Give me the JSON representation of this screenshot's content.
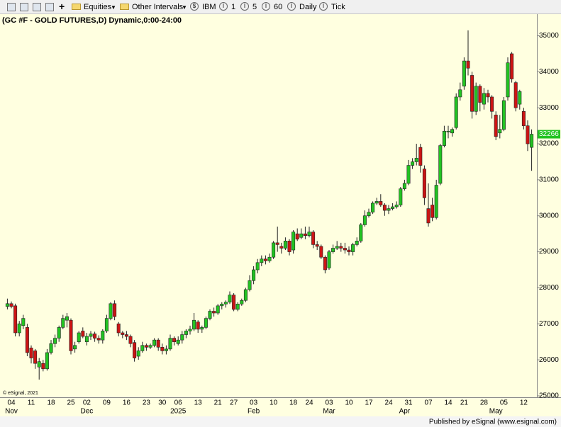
{
  "toolbar": {
    "items": [
      "Equities",
      "Other Intervals",
      "IBM",
      "1",
      "5",
      "60",
      "Daily",
      "Tick"
    ]
  },
  "footer": "Published by eSignal (www.esignal.com)",
  "chart_data": {
    "type": "candlestick",
    "title": "(GC #F - GOLD FUTURES,D) Dynamic,0:00-24:00",
    "copyright": "© eSignal, 2021",
    "categories": [
      null,
      "04",
      null,
      null,
      null,
      null,
      "11",
      null,
      null,
      null,
      null,
      "18",
      null,
      null,
      null,
      null,
      "25",
      null,
      null,
      null,
      "02",
      null,
      null,
      null,
      null,
      "09",
      null,
      null,
      null,
      null,
      "16",
      null,
      null,
      null,
      null,
      "23",
      null,
      null,
      null,
      "30",
      null,
      null,
      null,
      "06",
      null,
      null,
      null,
      null,
      "13",
      null,
      null,
      null,
      null,
      "21",
      null,
      null,
      null,
      "27",
      null,
      null,
      null,
      null,
      "03",
      null,
      null,
      null,
      null,
      "10",
      null,
      null,
      null,
      null,
      "18",
      null,
      null,
      null,
      "24",
      null,
      null,
      null,
      null,
      "03",
      null,
      null,
      null,
      null,
      "10",
      null,
      null,
      null,
      null,
      "17",
      null,
      null,
      null,
      null,
      "24",
      null,
      null,
      null,
      null,
      "31",
      null,
      null,
      null,
      null,
      "07",
      null,
      null,
      null,
      null,
      "14",
      null,
      null,
      null,
      "21",
      null,
      null,
      null,
      null,
      "28",
      null,
      null,
      null,
      null,
      "05",
      null,
      null,
      null,
      null,
      "12",
      null,
      null
    ],
    "months": [
      null,
      "Nov",
      null,
      null,
      null,
      null,
      null,
      null,
      null,
      null,
      null,
      null,
      null,
      null,
      null,
      null,
      null,
      null,
      null,
      null,
      "Dec",
      null,
      null,
      null,
      null,
      null,
      null,
      null,
      null,
      null,
      null,
      null,
      null,
      null,
      null,
      null,
      null,
      null,
      null,
      null,
      null,
      null,
      null,
      "2025",
      null,
      null,
      null,
      null,
      null,
      null,
      null,
      null,
      null,
      null,
      null,
      null,
      null,
      null,
      null,
      null,
      null,
      null,
      "Feb",
      null,
      null,
      null,
      null,
      null,
      null,
      null,
      null,
      null,
      null,
      null,
      null,
      null,
      null,
      null,
      null,
      null,
      null,
      "Mar",
      null,
      null,
      null,
      null,
      null,
      null,
      null,
      null,
      null,
      null,
      null,
      null,
      null,
      null,
      null,
      null,
      null,
      null,
      "Apr",
      null,
      null,
      null,
      null,
      null,
      null,
      null,
      null,
      null,
      null,
      null,
      null,
      null,
      null,
      null,
      null,
      null,
      null,
      null,
      null,
      null,
      null,
      "May",
      null,
      null,
      null,
      null,
      null,
      null,
      null
    ],
    "open": [
      27480,
      27560,
      27500,
      26750,
      26950,
      26900,
      26330,
      26250,
      25800,
      25900,
      25750,
      26200,
      26450,
      26600,
      26900,
      27100,
      27100,
      26300,
      26500,
      26800,
      26500,
      26650,
      26720,
      26600,
      26550,
      26800,
      27150,
      27560,
      27000,
      26750,
      26700,
      26650,
      26480,
      26100,
      26250,
      26400,
      26350,
      26400,
      26550,
      26350,
      26250,
      26300,
      26600,
      26450,
      26550,
      26700,
      26800,
      26850,
      27050,
      26850,
      26900,
      27150,
      27350,
      27300,
      27500,
      27550,
      27600,
      27800,
      27400,
      27550,
      27650,
      27950,
      28200,
      28500,
      28700,
      28800,
      28750,
      28850,
      29250,
      29150,
      29100,
      29300,
      29050,
      29500,
      29400,
      29500,
      29450,
      29550,
      29200,
      29150,
      28850,
      28550,
      29000,
      29100,
      29150,
      29100,
      29050,
      29000,
      29200,
      29300,
      29750,
      30000,
      30100,
      30350,
      30400,
      30300,
      30150,
      30200,
      30250,
      30300,
      30750,
      30900,
      31400,
      31500,
      31900,
      31300,
      30200,
      30300,
      29950,
      30900,
      31950,
      32350,
      32300,
      32450,
      33300,
      33600,
      34300,
      33900,
      32900,
      33600,
      33100,
      33400,
      33300,
      32800,
      32300,
      32400,
      33300,
      34500,
      33700,
      33100,
      32900,
      32500,
      31900
    ],
    "high": [
      27700,
      27620,
      27560,
      27080,
      27250,
      27000,
      26400,
      26300,
      26050,
      26000,
      26300,
      26550,
      26700,
      26950,
      27250,
      27300,
      27150,
      26500,
      26800,
      26900,
      26750,
      26800,
      26780,
      26680,
      26850,
      27250,
      27600,
      27650,
      27050,
      26800,
      26800,
      26700,
      26550,
      26350,
      26500,
      26450,
      26450,
      26600,
      26600,
      26450,
      26400,
      26700,
      26650,
      26650,
      26800,
      26850,
      26950,
      27300,
      27100,
      26950,
      27200,
      27400,
      27450,
      27550,
      27600,
      27650,
      27900,
      27850,
      27600,
      27700,
      28000,
      28350,
      28600,
      28800,
      28900,
      28900,
      28950,
      29300,
      29700,
      29250,
      29400,
      29350,
      29600,
      29650,
      29650,
      29700,
      29700,
      29600,
      29300,
      29200,
      28900,
      29050,
      29200,
      29300,
      29250,
      29250,
      29150,
      29250,
      29400,
      29800,
      30150,
      30200,
      30400,
      30500,
      30600,
      30350,
      30300,
      30350,
      30400,
      30800,
      31000,
      31550,
      31600,
      32000,
      32000,
      31400,
      30900,
      30500,
      31000,
      32000,
      32500,
      32500,
      32450,
      33400,
      33700,
      34400,
      35150,
      34000,
      33700,
      33650,
      33550,
      33500,
      33350,
      32900,
      32800,
      33300,
      34400,
      34550,
      33750,
      33500,
      33000,
      32650,
      32400
    ],
    "low": [
      27400,
      27430,
      26650,
      26650,
      26850,
      26100,
      25900,
      25750,
      25450,
      25680,
      25700,
      26150,
      26350,
      26500,
      26850,
      26900,
      26150,
      26200,
      26450,
      26600,
      26400,
      26550,
      26500,
      26450,
      26450,
      26750,
      27100,
      27100,
      26650,
      26600,
      26550,
      26350,
      25950,
      26000,
      26200,
      26250,
      26300,
      26350,
      26250,
      26150,
      26150,
      26250,
      26400,
      26400,
      26450,
      26600,
      26700,
      26800,
      26750,
      26750,
      26850,
      27100,
      27200,
      27250,
      27400,
      27450,
      27550,
      27350,
      27350,
      27500,
      27600,
      27900,
      28100,
      28400,
      28600,
      28650,
      28700,
      28800,
      29000,
      28950,
      29050,
      28900,
      28950,
      29300,
      29350,
      29350,
      29400,
      29100,
      29050,
      28800,
      28400,
      28500,
      28950,
      29050,
      29000,
      28950,
      28900,
      28900,
      29150,
      29250,
      29700,
      29950,
      30050,
      30300,
      30250,
      30000,
      30050,
      30150,
      30200,
      30250,
      30700,
      30850,
      31300,
      31400,
      31200,
      30300,
      29700,
      29850,
      29900,
      30850,
      31900,
      32150,
      32200,
      32400,
      33200,
      33500,
      33900,
      32700,
      32800,
      32900,
      32950,
      33150,
      32700,
      32100,
      32150,
      32350,
      33200,
      33700,
      32900,
      32950,
      32400,
      31800,
      31250
    ],
    "close": [
      27560,
      27480,
      26750,
      27000,
      27150,
      26200,
      26050,
      25900,
      25950,
      25750,
      26200,
      26450,
      26600,
      26900,
      27150,
      27200,
      26250,
      26400,
      26750,
      26650,
      26650,
      26720,
      26600,
      26550,
      26800,
      27150,
      27560,
      27200,
      26750,
      26700,
      26650,
      26450,
      26050,
      26250,
      26400,
      26350,
      26400,
      26550,
      26350,
      26250,
      26300,
      26600,
      26500,
      26550,
      26700,
      26800,
      26850,
      27100,
      26850,
      26900,
      27150,
      27350,
      27300,
      27500,
      27550,
      27600,
      27800,
      27400,
      27550,
      27650,
      27950,
      28200,
      28500,
      28700,
      28800,
      28750,
      28850,
      29250,
      29200,
      29100,
      29300,
      29000,
      29550,
      29350,
      29500,
      29450,
      29550,
      29200,
      29150,
      28850,
      28500,
      29000,
      29100,
      29150,
      29100,
      29050,
      29000,
      29200,
      29300,
      29750,
      30000,
      30100,
      30350,
      30400,
      30300,
      30150,
      30200,
      30250,
      30300,
      30750,
      30900,
      31400,
      31500,
      31600,
      31400,
      30500,
      29800,
      29950,
      30850,
      31950,
      32350,
      32350,
      32400,
      33300,
      33500,
      34300,
      34100,
      32900,
      33600,
      33150,
      33400,
      33300,
      32900,
      32200,
      32400,
      33200,
      34250,
      33800,
      33000,
      33450,
      32500,
      32000,
      32266
    ],
    "up_color": "#22c322",
    "down_color": "#cc1414",
    "last_price": 32266,
    "last_price_color": "#22c322",
    "ylim": [
      24960,
      35600
    ],
    "yticks": [
      25000,
      26000,
      27000,
      28000,
      29000,
      30000,
      31000,
      32000,
      33000,
      34000,
      35000
    ]
  }
}
